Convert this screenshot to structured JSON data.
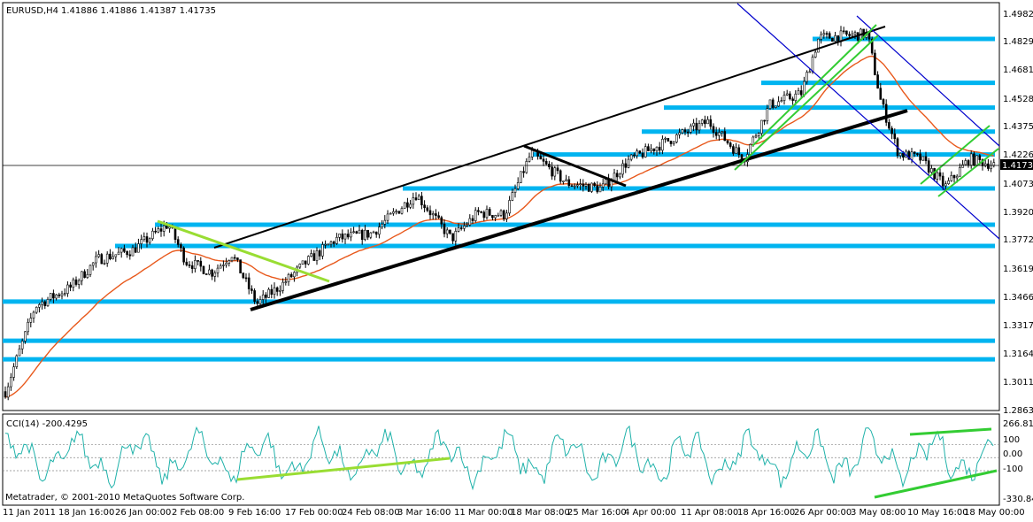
{
  "main": {
    "symbol_label": "EURUSD,H4",
    "ohlc_label": "1.41886 1.41886 1.41387 1.41735",
    "current_price_label": "1.41735",
    "price_ticks": [
      "1.49820",
      "1.48295",
      "1.46810",
      "1.45280",
      "1.43750",
      "1.42265",
      "1.40735",
      "1.39205",
      "1.37720",
      "1.36190",
      "1.34660",
      "1.33175",
      "1.31645",
      "1.30115",
      "1.28630"
    ],
    "date_ticks": [
      "11 Jan 2011",
      "18 Jan 16:00",
      "26 Jan 00:00",
      "2 Feb 08:00",
      "9 Feb 16:00",
      "17 Feb 00:00",
      "24 Feb 08:00",
      "3 Mar 16:00",
      "11 Mar 00:00",
      "18 Mar 08:00",
      "25 Mar 16:00",
      "4 Apr 00:00",
      "11 Apr 08:00",
      "18 Apr 16:00",
      "26 Apr 00:00",
      "3 May 08:00",
      "10 May 16:00",
      "18 May 00:00"
    ],
    "copyright": "Metatrader, © 2001-2010 MetaQuotes Software Corp."
  },
  "indicator": {
    "label": "CCI(14) -200.4295",
    "ticks": [
      "266.819",
      "100",
      "0.00",
      "-100",
      "-330.845"
    ]
  },
  "colors": {
    "background": "#ffffff",
    "candles": "#000000",
    "support_lines": "#00b4f0",
    "moving_average": "#e8591c",
    "channel_blue": "#0000cc",
    "trend_green": "#33cc33",
    "trend_lime": "#99dd33",
    "cci_line": "#20b2aa",
    "trend_black": "#000000"
  },
  "chart_data": {
    "type": "candlestick",
    "symbol": "EURUSD",
    "timeframe": "H4",
    "ylim": [
      1.2863,
      1.4982
    ],
    "last_price": 1.41735,
    "horizontal_levels": [
      1.3133,
      1.3233,
      1.3443,
      1.3742,
      1.3856,
      1.4051,
      1.4233,
      1.4356,
      1.4485,
      1.4618,
      1.4854
    ],
    "indicator": {
      "name": "CCI",
      "period": 14,
      "last_value": -200.4295,
      "ylim": [
        -330.845,
        266.819
      ]
    }
  }
}
